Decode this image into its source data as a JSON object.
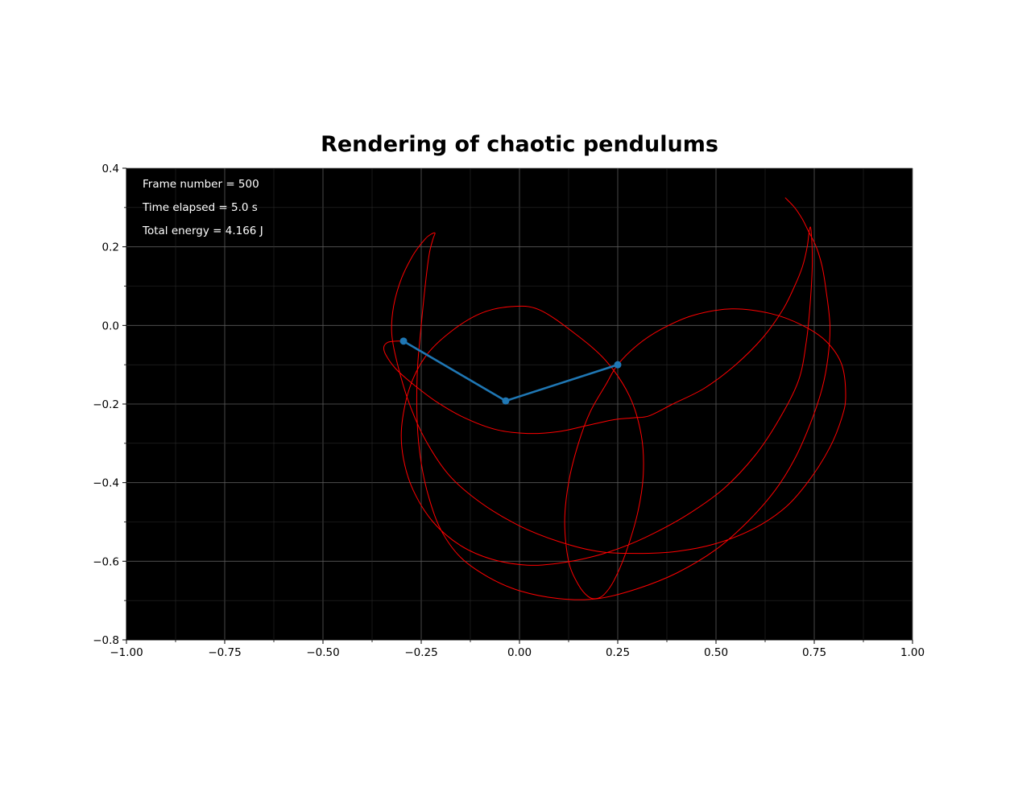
{
  "chart_data": {
    "type": "line",
    "title": "Rendering of chaotic pendulums",
    "xlabel": "",
    "ylabel": "",
    "xlim": [
      -1.0,
      1.0
    ],
    "ylim": [
      -0.8,
      0.4
    ],
    "background": "#000000",
    "grid": true,
    "x_ticks": [
      -1.0,
      -0.75,
      -0.5,
      -0.25,
      0.0,
      0.25,
      0.5,
      0.75,
      1.0
    ],
    "x_tick_labels": [
      "−1.00",
      "−0.75",
      "−0.50",
      "−0.25",
      "0.00",
      "0.25",
      "0.50",
      "0.75",
      "1.00"
    ],
    "y_ticks": [
      -0.8,
      -0.6,
      -0.4,
      -0.2,
      0.0,
      0.2,
      0.4
    ],
    "y_tick_labels": [
      "−0.8",
      "−0.6",
      "−0.4",
      "−0.2",
      "0.0",
      "0.2",
      "0.4"
    ],
    "x_minor_ticks": [
      -0.875,
      -0.625,
      -0.375,
      -0.125,
      0.125,
      0.375,
      0.625,
      0.875
    ],
    "y_minor_ticks": [
      -0.7,
      -0.5,
      -0.3,
      -0.1,
      0.1,
      0.3
    ],
    "annotations": [
      "Frame number = 500",
      "Time elapsed = 5.0 s",
      "Total energy = 4.166 J"
    ],
    "pendulum": {
      "color": "#1f77b4",
      "points": [
        [
          0.25,
          -0.1
        ],
        [
          -0.035,
          -0.192
        ],
        [
          -0.295,
          -0.04
        ]
      ]
    },
    "trail": {
      "color": "#ff0000",
      "points": [
        [
          0.676,
          0.325
        ],
        [
          0.7,
          0.3
        ],
        [
          0.72,
          0.27
        ],
        [
          0.735,
          0.24
        ],
        [
          0.755,
          0.2
        ],
        [
          0.77,
          0.15
        ],
        [
          0.78,
          0.09
        ],
        [
          0.79,
          0.0
        ],
        [
          0.785,
          -0.08
        ],
        [
          0.77,
          -0.16
        ],
        [
          0.74,
          -0.25
        ],
        [
          0.7,
          -0.34
        ],
        [
          0.65,
          -0.42
        ],
        [
          0.58,
          -0.5
        ],
        [
          0.5,
          -0.57
        ],
        [
          0.4,
          -0.63
        ],
        [
          0.3,
          -0.67
        ],
        [
          0.2,
          -0.695
        ],
        [
          0.1,
          -0.695
        ],
        [
          0.0,
          -0.675
        ],
        [
          -0.08,
          -0.64
        ],
        [
          -0.15,
          -0.59
        ],
        [
          -0.2,
          -0.52
        ],
        [
          -0.23,
          -0.44
        ],
        [
          -0.25,
          -0.35
        ],
        [
          -0.26,
          -0.25
        ],
        [
          -0.26,
          -0.12
        ],
        [
          -0.25,
          0.0
        ],
        [
          -0.24,
          0.1
        ],
        [
          -0.23,
          0.18
        ],
        [
          -0.22,
          0.22
        ],
        [
          -0.215,
          0.235
        ],
        [
          -0.225,
          0.232
        ],
        [
          -0.24,
          0.22
        ],
        [
          -0.27,
          0.18
        ],
        [
          -0.3,
          0.12
        ],
        [
          -0.32,
          0.05
        ],
        [
          -0.325,
          -0.02
        ],
        [
          -0.31,
          -0.1
        ],
        [
          -0.28,
          -0.2
        ],
        [
          -0.24,
          -0.29
        ],
        [
          -0.18,
          -0.38
        ],
        [
          -0.1,
          -0.45
        ],
        [
          0.0,
          -0.51
        ],
        [
          0.1,
          -0.55
        ],
        [
          0.2,
          -0.575
        ],
        [
          0.3,
          -0.58
        ],
        [
          0.4,
          -0.575
        ],
        [
          0.5,
          -0.555
        ],
        [
          0.6,
          -0.515
        ],
        [
          0.68,
          -0.46
        ],
        [
          0.74,
          -0.39
        ],
        [
          0.79,
          -0.31
        ],
        [
          0.82,
          -0.235
        ],
        [
          0.83,
          -0.18
        ],
        [
          0.82,
          -0.1
        ],
        [
          0.78,
          -0.04
        ],
        [
          0.72,
          0.0
        ],
        [
          0.64,
          0.03
        ],
        [
          0.54,
          0.042
        ],
        [
          0.44,
          0.025
        ],
        [
          0.36,
          -0.01
        ],
        [
          0.3,
          -0.05
        ],
        [
          0.25,
          -0.1
        ],
        [
          0.22,
          -0.15
        ],
        [
          0.18,
          -0.22
        ],
        [
          0.15,
          -0.3
        ],
        [
          0.125,
          -0.4
        ],
        [
          0.115,
          -0.5
        ],
        [
          0.125,
          -0.6
        ],
        [
          0.15,
          -0.66
        ],
        [
          0.175,
          -0.69
        ],
        [
          0.195,
          -0.695
        ],
        [
          0.215,
          -0.685
        ],
        [
          0.24,
          -0.65
        ],
        [
          0.27,
          -0.58
        ],
        [
          0.3,
          -0.48
        ],
        [
          0.315,
          -0.38
        ],
        [
          0.31,
          -0.28
        ],
        [
          0.28,
          -0.18
        ],
        [
          0.22,
          -0.09
        ],
        [
          0.14,
          -0.02
        ],
        [
          0.05,
          0.04
        ],
        [
          -0.02,
          0.048
        ],
        [
          -0.1,
          0.03
        ],
        [
          -0.18,
          -0.02
        ],
        [
          -0.24,
          -0.08
        ],
        [
          -0.28,
          -0.16
        ],
        [
          -0.3,
          -0.26
        ],
        [
          -0.295,
          -0.34
        ],
        [
          -0.27,
          -0.42
        ],
        [
          -0.22,
          -0.5
        ],
        [
          -0.15,
          -0.56
        ],
        [
          -0.07,
          -0.595
        ],
        [
          0.02,
          -0.61
        ],
        [
          0.1,
          -0.605
        ],
        [
          0.18,
          -0.59
        ],
        [
          0.26,
          -0.565
        ],
        [
          0.34,
          -0.53
        ],
        [
          0.43,
          -0.48
        ],
        [
          0.52,
          -0.415
        ],
        [
          0.6,
          -0.33
        ],
        [
          0.66,
          -0.24
        ],
        [
          0.71,
          -0.14
        ],
        [
          0.73,
          -0.04
        ],
        [
          0.74,
          0.06
        ],
        [
          0.745,
          0.16
        ],
        [
          0.742,
          0.24
        ],
        [
          0.738,
          0.245
        ],
        [
          0.732,
          0.2
        ],
        [
          0.72,
          0.15
        ],
        [
          0.7,
          0.1
        ],
        [
          0.67,
          0.04
        ],
        [
          0.62,
          -0.03
        ],
        [
          0.55,
          -0.1
        ],
        [
          0.47,
          -0.16
        ],
        [
          0.39,
          -0.2
        ],
        [
          0.33,
          -0.23
        ],
        [
          0.29,
          -0.235
        ],
        [
          0.24,
          -0.24
        ],
        [
          0.17,
          -0.255
        ],
        [
          0.1,
          -0.27
        ],
        [
          0.02,
          -0.275
        ],
        [
          -0.06,
          -0.265
        ],
        [
          -0.14,
          -0.235
        ],
        [
          -0.21,
          -0.195
        ],
        [
          -0.27,
          -0.15
        ],
        [
          -0.315,
          -0.11
        ],
        [
          -0.34,
          -0.075
        ],
        [
          -0.345,
          -0.055
        ],
        [
          -0.335,
          -0.043
        ],
        [
          -0.315,
          -0.04
        ],
        [
          -0.295,
          -0.04
        ]
      ]
    }
  }
}
